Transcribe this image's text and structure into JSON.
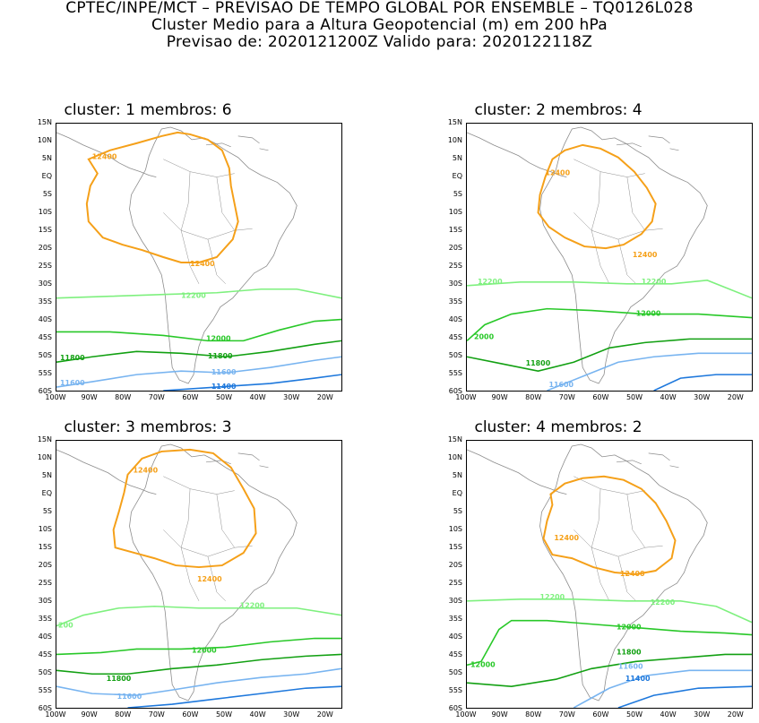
{
  "header": {
    "line1": "CPTEC/INPE/MCT – PREVISAO DE TEMPO GLOBAL POR ENSEMBLE – TQ0126L028",
    "line2": "Cluster Medio para a Altura Geopotencial (m) em 200 hPa",
    "line3": "Previsao de: 2020121200Z    Valido para: 2020122118Z"
  },
  "axes": {
    "lat_labels": [
      "15N",
      "10N",
      "5N",
      "EQ",
      "5S",
      "10S",
      "15S",
      "20S",
      "25S",
      "30S",
      "35S",
      "40S",
      "45S",
      "50S",
      "55S",
      "60S"
    ],
    "lon_labels": [
      "100W",
      "90W",
      "80W",
      "70W",
      "60W",
      "50W",
      "40W",
      "30W",
      "20W"
    ]
  },
  "colors": {
    "c12400": "#f5a019",
    "c12200": "#7ef07e",
    "c12000": "#28c828",
    "c11800": "#12a012",
    "c11600": "#78b4f0",
    "c11400": "#1e78dc",
    "c11200": "#0a50b4",
    "coast": "#8c8c8c"
  },
  "panels": [
    {
      "title": "cluster: 1   membros: 6",
      "contours": [
        {
          "value": "12400",
          "labels": [
            "12400",
            "12400"
          ]
        },
        {
          "value": "12200",
          "labels": [
            "12200"
          ]
        },
        {
          "value": "12000",
          "labels": [
            "12000"
          ]
        },
        {
          "value": "11800",
          "labels": [
            "11800",
            "11800"
          ]
        },
        {
          "value": "11600",
          "labels": [
            "11600",
            "11600"
          ]
        },
        {
          "value": "11400",
          "labels": [
            "11400"
          ]
        }
      ]
    },
    {
      "title": "cluster: 2   membros: 4",
      "contours": [
        {
          "value": "12400",
          "labels": [
            "12400",
            "12400"
          ]
        },
        {
          "value": "12200",
          "labels": [
            "12200",
            "12200"
          ]
        },
        {
          "value": "12000",
          "labels": [
            "12000",
            "2000"
          ]
        },
        {
          "value": "11800",
          "labels": [
            "11800"
          ]
        },
        {
          "value": "11600",
          "labels": [
            "11600"
          ]
        }
      ]
    },
    {
      "title": "cluster: 3   membros: 3",
      "contours": [
        {
          "value": "12400",
          "labels": [
            "12400",
            "12400"
          ]
        },
        {
          "value": "12200",
          "labels": [
            "12200",
            "200"
          ]
        },
        {
          "value": "12000",
          "labels": [
            "12000"
          ]
        },
        {
          "value": "11800",
          "labels": [
            "11800"
          ]
        },
        {
          "value": "11600",
          "labels": [
            "11600"
          ]
        }
      ]
    },
    {
      "title": "cluster: 4   membros: 2",
      "contours": [
        {
          "value": "12400",
          "labels": [
            "12400",
            "12400"
          ]
        },
        {
          "value": "12200",
          "labels": [
            "12200",
            "12200"
          ]
        },
        {
          "value": "12000",
          "labels": [
            "12000",
            "12000"
          ]
        },
        {
          "value": "11800",
          "labels": [
            "11800"
          ]
        },
        {
          "value": "11600",
          "labels": [
            "11600"
          ]
        },
        {
          "value": "11400",
          "labels": [
            "11400"
          ]
        }
      ]
    }
  ]
}
